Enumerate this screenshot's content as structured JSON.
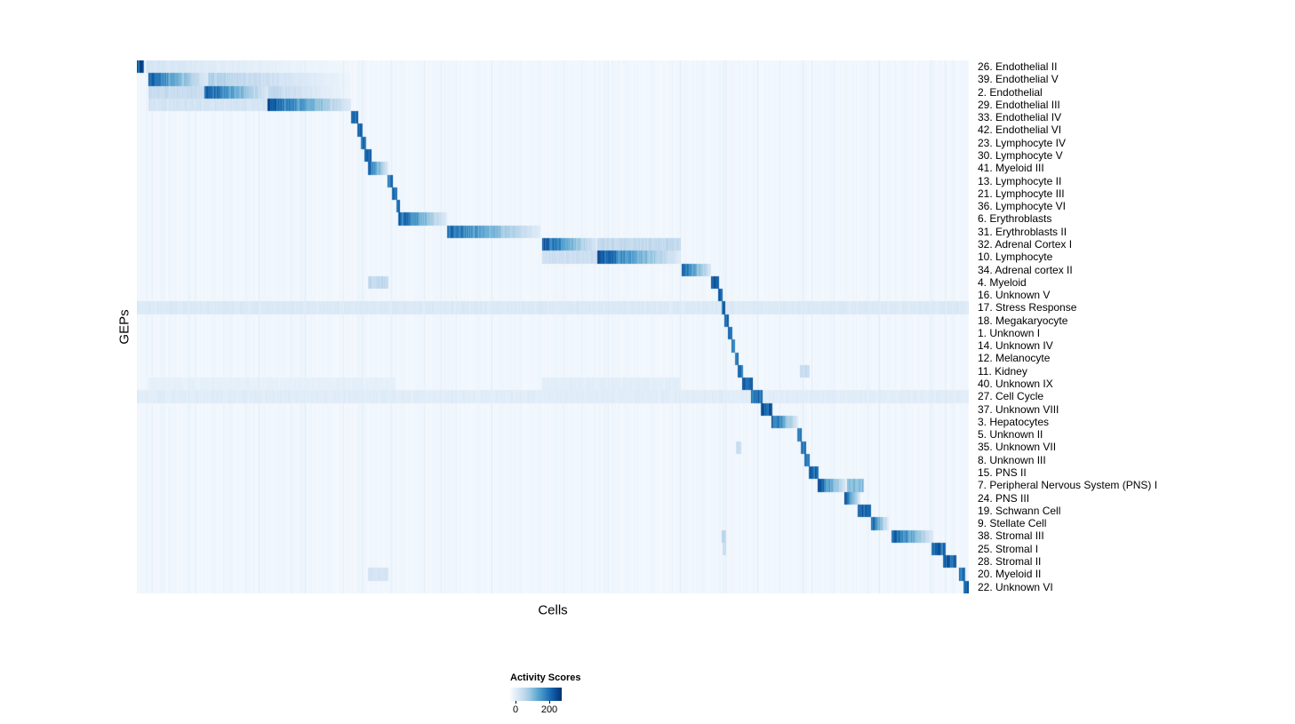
{
  "figure": {
    "background": "#ffffff"
  },
  "chart_data": {
    "type": "heatmap",
    "title": "",
    "xlabel": "Cells",
    "ylabel": "GEPs",
    "legend_position": "bottom",
    "grid": false,
    "rows": [
      "26.  Endothelial II",
      "39.  Endothelial V",
      "2.  Endothelial",
      "29.  Endothelial III",
      "33.  Endothelial IV",
      "42.  Endothelial VI",
      "23.  Lymphocyte IV",
      "30.  Lymphocyte V",
      "41.  Myeloid III",
      "13.  Lymphocyte II",
      "21.  Lymphocyte III",
      "36.  Lymphocyte VI",
      "6.  Erythroblasts",
      "31.  Erythroblasts II",
      "32.  Adrenal Cortex I",
      "10.  Lymphocyte",
      "34.  Adrenal cortex II",
      "4.  Myeloid",
      "16.  Unknown V",
      "17.  Stress Response",
      "18.  Megakaryocyte",
      "1.  Unknown I",
      "14.  Unknown IV",
      "12.  Melanocyte",
      "11.  Kidney",
      "40.  Unknown IX",
      "27.  Cell Cycle",
      "37.  Unknown VIII",
      "3.  Hepatocytes",
      "5.  Unknown II",
      "35.  Unknown VII",
      "8.  Unknown III",
      "15.  PNS II",
      "7.  Peripheral Nervous System (PNS) I",
      "24.  PNS III",
      "19.  Schwann Cell",
      "9.  Stellate Cell",
      "38.  Stromal III",
      "25.  Stromal I",
      "28.  Stromal II",
      "20.  Myeloid II",
      "22.  Unknown VI"
    ],
    "colorbar": {
      "title": "Activity Scores",
      "tick_labels": [
        "0",
        "200"
      ]
    },
    "colormap": [
      "#f7fbff",
      "#deebf7",
      "#c6dbef",
      "#9ecae1",
      "#6baed6",
      "#4292c6",
      "#2171b5",
      "#08519c",
      "#08306b"
    ],
    "blocks": [
      [
        0,
        0.0,
        0.008,
        1.0,
        0
      ],
      [
        0,
        0.01,
        0.26,
        0.2,
        1
      ],
      [
        1,
        0.013,
        0.085,
        0.95,
        1
      ],
      [
        1,
        0.085,
        0.257,
        0.38,
        1
      ],
      [
        2,
        0.013,
        0.081,
        0.28,
        0
      ],
      [
        2,
        0.081,
        0.158,
        1.0,
        1
      ],
      [
        2,
        0.158,
        0.257,
        0.32,
        1
      ],
      [
        3,
        0.013,
        0.156,
        0.2,
        0
      ],
      [
        3,
        0.156,
        0.257,
        1.0,
        1
      ],
      [
        4,
        0.257,
        0.266,
        0.9,
        0
      ],
      [
        5,
        0.264,
        0.271,
        0.85,
        0
      ],
      [
        6,
        0.269,
        0.275,
        0.85,
        0
      ],
      [
        7,
        0.273,
        0.281,
        0.9,
        0
      ],
      [
        8,
        0.277,
        0.302,
        0.95,
        1
      ],
      [
        9,
        0.301,
        0.307,
        0.9,
        0
      ],
      [
        10,
        0.306,
        0.312,
        0.85,
        0
      ],
      [
        11,
        0.311,
        0.316,
        0.85,
        0
      ],
      [
        12,
        0.314,
        0.372,
        0.95,
        1
      ],
      [
        13,
        0.372,
        0.485,
        0.9,
        1
      ],
      [
        14,
        0.487,
        0.553,
        1.0,
        1
      ],
      [
        14,
        0.553,
        0.653,
        0.3,
        0
      ],
      [
        15,
        0.487,
        0.553,
        0.25,
        0
      ],
      [
        15,
        0.553,
        0.653,
        1.0,
        1
      ],
      [
        16,
        0.654,
        0.69,
        1.0,
        1
      ],
      [
        17,
        0.277,
        0.302,
        0.3,
        0
      ],
      [
        17,
        0.69,
        0.699,
        0.95,
        0
      ],
      [
        18,
        0.698,
        0.703,
        0.9,
        0
      ],
      [
        19,
        0.0,
        1.0,
        0.16,
        0
      ],
      [
        19,
        0.702,
        0.707,
        0.95,
        0
      ],
      [
        20,
        0.706,
        0.711,
        0.9,
        0
      ],
      [
        21,
        0.71,
        0.715,
        0.85,
        0
      ],
      [
        22,
        0.714,
        0.719,
        0.85,
        0
      ],
      [
        23,
        0.718,
        0.723,
        0.9,
        0
      ],
      [
        24,
        0.722,
        0.728,
        0.9,
        0
      ],
      [
        24,
        0.797,
        0.808,
        0.28,
        0
      ],
      [
        25,
        0.727,
        0.74,
        0.9,
        0
      ],
      [
        25,
        0.013,
        0.31,
        0.1,
        0
      ],
      [
        25,
        0.487,
        0.653,
        0.12,
        0
      ],
      [
        26,
        0.0,
        1.0,
        0.13,
        0
      ],
      [
        26,
        0.738,
        0.752,
        0.9,
        0
      ],
      [
        27,
        0.75,
        0.763,
        0.95,
        0
      ],
      [
        28,
        0.762,
        0.794,
        1.0,
        1
      ],
      [
        29,
        0.793,
        0.799,
        0.85,
        0
      ],
      [
        30,
        0.72,
        0.726,
        0.28,
        0
      ],
      [
        30,
        0.798,
        0.804,
        0.85,
        0
      ],
      [
        31,
        0.802,
        0.808,
        0.85,
        0
      ],
      [
        32,
        0.807,
        0.819,
        0.9,
        0
      ],
      [
        33,
        0.818,
        0.852,
        1.0,
        1
      ],
      [
        33,
        0.853,
        0.873,
        0.5,
        0
      ],
      [
        34,
        0.85,
        0.869,
        0.95,
        1
      ],
      [
        35,
        0.866,
        0.882,
        0.95,
        0
      ],
      [
        36,
        0.882,
        0.903,
        0.95,
        1
      ],
      [
        37,
        0.702,
        0.708,
        0.33,
        0
      ],
      [
        37,
        0.907,
        0.957,
        1.0,
        1
      ],
      [
        38,
        0.703,
        0.708,
        0.28,
        0
      ],
      [
        38,
        0.955,
        0.972,
        0.9,
        0
      ],
      [
        39,
        0.968,
        0.985,
        0.95,
        0
      ],
      [
        40,
        0.277,
        0.302,
        0.2,
        0
      ],
      [
        40,
        0.988,
        0.995,
        0.9,
        0
      ],
      [
        41,
        0.993,
        1.0,
        0.95,
        0
      ]
    ]
  }
}
